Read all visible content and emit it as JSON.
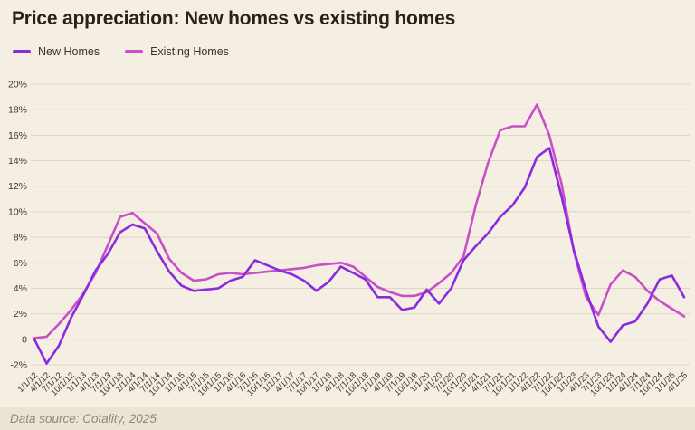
{
  "title": "Price appreciation: New homes vs existing homes",
  "footer": "Data source: Cotality, 2025",
  "colors": {
    "background": "#f5eee2",
    "footer_background": "#ebe3d3",
    "grid": "#ded6c4",
    "axis_text": "#3b352e",
    "new_homes": "#8a2be0",
    "existing_homes": "#c94fc9"
  },
  "chart_data": {
    "type": "line",
    "title": "Price appreciation: New homes vs existing homes",
    "xlabel": "",
    "ylabel": "",
    "grid": true,
    "legend_position": "top-left",
    "ylim": [
      -2,
      20
    ],
    "ytick_labels": [
      "20%",
      "18%",
      "16%",
      "14%",
      "12%",
      "10%",
      "8%",
      "6%",
      "4%",
      "2%",
      "0",
      "-2%"
    ],
    "ytick_values": [
      20,
      18,
      16,
      14,
      12,
      10,
      8,
      6,
      4,
      2,
      0,
      -2
    ],
    "categories": [
      "1/1/12",
      "4/1/12",
      "7/1/12",
      "10/1/12",
      "1/1/13",
      "4/1/13",
      "7/1/13",
      "10/1/13",
      "1/1/14",
      "4/1/14",
      "7/1/14",
      "10/1/14",
      "1/1/15",
      "4/1/15",
      "7/1/15",
      "10/1/15",
      "1/1/16",
      "4/1/16",
      "7/1/16",
      "10/1/16",
      "1/1/17",
      "4/1/17",
      "7/1/17",
      "10/1/17",
      "1/1/18",
      "4/1/18",
      "7/1/18",
      "10/1/18",
      "1/1/19",
      "4/1/19",
      "7/1/19",
      "10/1/19",
      "1/1/20",
      "4/1/20",
      "7/1/20",
      "10/1/20",
      "1/1/21",
      "4/1/21",
      "7/1/21",
      "10/1/21",
      "1/1/22",
      "4/1/22",
      "7/1/22",
      "10/1/22",
      "1/1/23",
      "4/1/23",
      "7/1/23",
      "10/1/23",
      "1/1/24",
      "4/1/24",
      "7/1/24",
      "10/1/24",
      "1/1/25",
      "4/1/25"
    ],
    "series": [
      {
        "name": "New Homes",
        "color": "#8a2be0",
        "values": [
          0.0,
          -1.9,
          -0.5,
          1.7,
          3.5,
          5.4,
          6.7,
          8.4,
          9.0,
          8.7,
          6.9,
          5.3,
          4.2,
          3.8,
          3.9,
          4.0,
          4.6,
          4.9,
          6.2,
          5.8,
          5.4,
          5.1,
          4.6,
          3.8,
          4.5,
          5.7,
          5.2,
          4.7,
          3.3,
          3.3,
          2.3,
          2.5,
          3.9,
          2.8,
          4.0,
          6.2,
          7.3,
          8.3,
          9.6,
          10.5,
          11.9,
          14.3,
          15.0,
          11.2,
          7.0,
          3.8,
          1.0,
          -0.2,
          1.1,
          1.4,
          2.8,
          4.7,
          5.0,
          3.3
        ]
      },
      {
        "name": "Existing Homes",
        "color": "#c94fc9",
        "values": [
          0.1,
          0.2,
          1.2,
          2.3,
          3.6,
          5.2,
          7.4,
          9.6,
          9.9,
          9.1,
          8.3,
          6.3,
          5.2,
          4.6,
          4.7,
          5.1,
          5.2,
          5.1,
          5.2,
          5.3,
          5.4,
          5.5,
          5.6,
          5.8,
          5.9,
          6.0,
          5.7,
          4.9,
          4.1,
          3.7,
          3.4,
          3.4,
          3.7,
          4.4,
          5.2,
          6.5,
          10.5,
          13.8,
          16.4,
          16.7,
          16.7,
          18.4,
          16.0,
          12.2,
          6.9,
          3.3,
          1.9,
          4.3,
          5.4,
          4.9,
          3.8,
          3.0,
          2.4,
          1.8
        ]
      }
    ]
  }
}
